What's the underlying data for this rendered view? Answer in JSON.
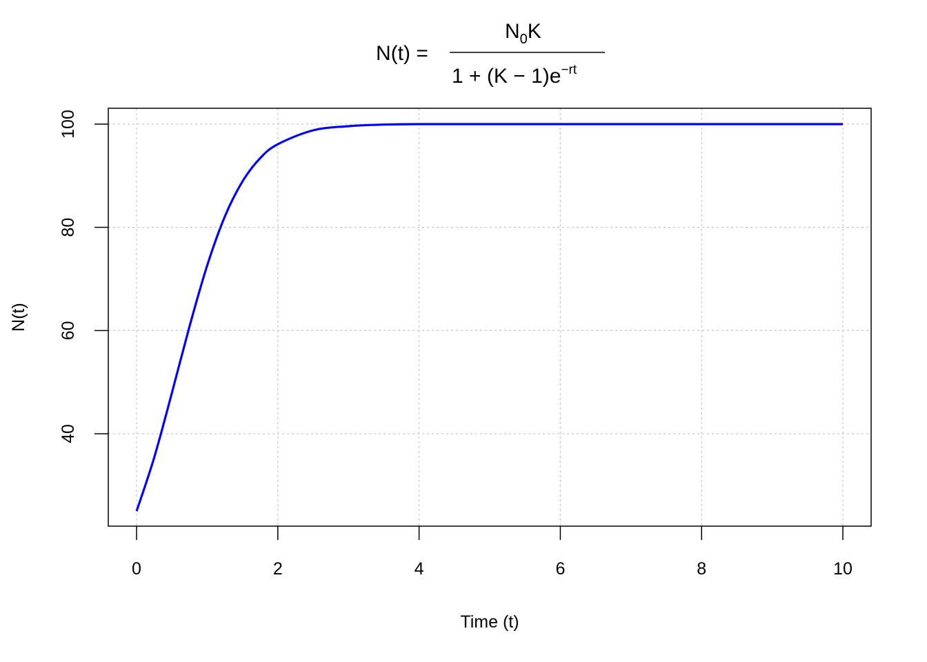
{
  "chart_data": {
    "type": "line",
    "title": {
      "lhs": "N(t) =",
      "numerator": "N",
      "numerator_subscript": "0",
      "numerator_after": "K",
      "denominator": "1 + (K − 1)e",
      "denominator_superscript": "−rt"
    },
    "xlabel": "Time (t)",
    "ylabel": "N(t)",
    "xlim": [
      0,
      10
    ],
    "ylim": [
      25,
      100
    ],
    "xticks": [
      "0",
      "2",
      "4",
      "6",
      "8",
      "10"
    ],
    "yticks": [
      "40",
      "60",
      "80",
      "100"
    ],
    "grid": true,
    "legend": "none",
    "series": [
      {
        "color": "#0000ff",
        "x": [
          0,
          0.25,
          0.5,
          0.75,
          1.0,
          1.25,
          1.5,
          1.75,
          2.0,
          2.5,
          3.0,
          3.5,
          4.0,
          5.0,
          6.0,
          7.0,
          8.0,
          9.0,
          10.0
        ],
        "y": [
          25.0,
          35.4,
          47.9,
          60.8,
          72.6,
          82.1,
          88.9,
          93.4,
          96.1,
          98.8,
          99.6,
          99.9,
          100.0,
          100.0,
          100.0,
          100.0,
          100.0,
          100.0,
          100.0
        ]
      }
    ]
  }
}
